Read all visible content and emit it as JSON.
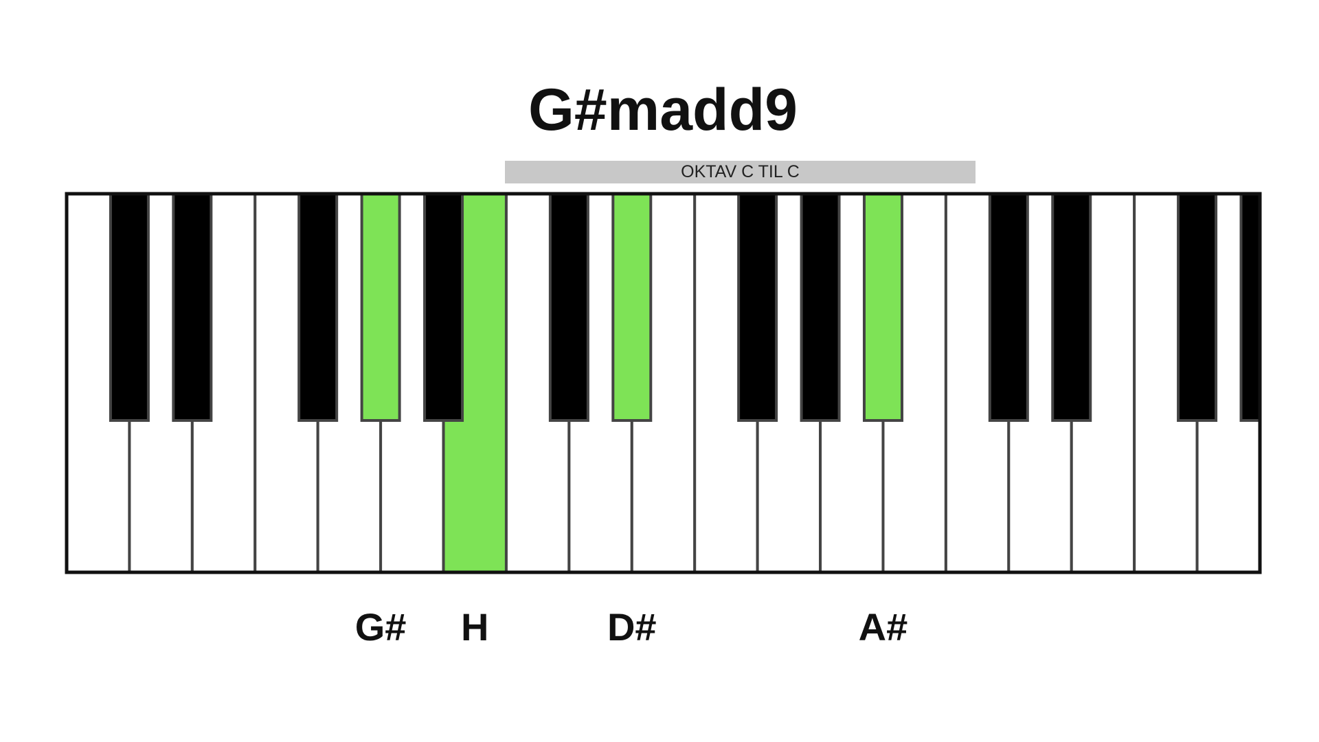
{
  "title": "G#madd9",
  "octave_label": "OKTAV C TIL C",
  "colors": {
    "highlight": "#7ee356",
    "white_key": "#ffffff",
    "black_key": "#000000",
    "key_border": "#444444"
  },
  "keyboard": {
    "white_key_count": 19,
    "white_keys_highlighted": [
      6
    ],
    "black_keys": [
      {
        "after_white": 0,
        "highlighted": false
      },
      {
        "after_white": 1,
        "highlighted": false
      },
      {
        "after_white": 3,
        "highlighted": false
      },
      {
        "after_white": 4,
        "highlighted": true
      },
      {
        "after_white": 5,
        "highlighted": false
      },
      {
        "after_white": 7,
        "highlighted": false
      },
      {
        "after_white": 8,
        "highlighted": true
      },
      {
        "after_white": 10,
        "highlighted": false
      },
      {
        "after_white": 11,
        "highlighted": false
      },
      {
        "after_white": 12,
        "highlighted": true
      },
      {
        "after_white": 14,
        "highlighted": false
      },
      {
        "after_white": 15,
        "highlighted": false
      },
      {
        "after_white": 17,
        "highlighted": false
      },
      {
        "after_white": 18,
        "highlighted": false
      }
    ]
  },
  "notes": [
    {
      "label": "G#",
      "black_key": 3
    },
    {
      "label": "H",
      "white_key": 6
    },
    {
      "label": "D#",
      "black_key": 6
    },
    {
      "label": "A#",
      "black_key": 9
    }
  ]
}
